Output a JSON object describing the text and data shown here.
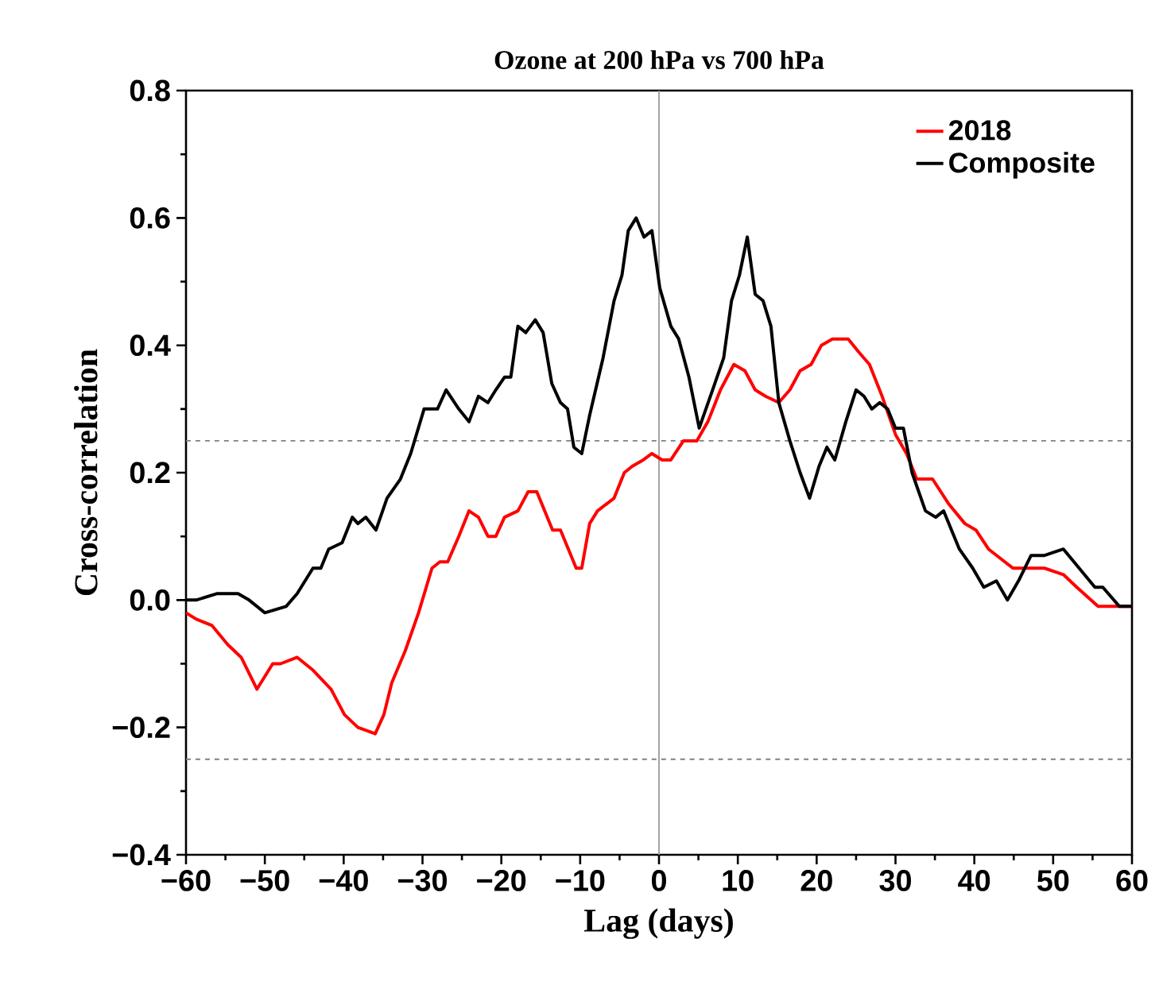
{
  "chart_data": {
    "type": "line",
    "title": "Ozone at 200 hPa vs 700 hPa",
    "xlabel": "Lag (days)",
    "ylabel": "Cross-correlation",
    "xlim": [
      -60,
      60
    ],
    "ylim": [
      -0.4,
      0.8
    ],
    "xticks": [
      {
        "value": -60,
        "label": "−60"
      },
      {
        "value": -50,
        "label": "−50"
      },
      {
        "value": -40,
        "label": "−40"
      },
      {
        "value": -30,
        "label": "−30"
      },
      {
        "value": -20,
        "label": "−20"
      },
      {
        "value": -10,
        "label": "−10"
      },
      0,
      10,
      20,
      30,
      40,
      50,
      60
    ],
    "yticks": [
      {
        "value": -0.4,
        "label": "−0.4"
      },
      {
        "value": -0.2,
        "label": "−0.2"
      },
      {
        "value": 0,
        "label": "0.0"
      },
      0.2,
      0.4,
      0.6,
      0.8
    ],
    "legend": "top right",
    "marker": "none",
    "line_style": "solid",
    "grid": false,
    "ref_lines": [
      {
        "axis": "x",
        "value": 0,
        "color": "#999999",
        "line_style": "solid"
      },
      {
        "axis": "y",
        "value": 0.25,
        "color": "#808080",
        "line_style": "dashed"
      },
      {
        "axis": "y",
        "value": -0.25,
        "color": "#808080",
        "line_style": "dashed"
      }
    ],
    "series": [
      {
        "name": "2018",
        "color": "#ff0000",
        "x": [
          -60,
          -58.7,
          -56.7,
          -54.7,
          -53,
          -51,
          -50,
          -49,
          -48,
          -45.9,
          -43.9,
          -41.6,
          -39.9,
          -38.2,
          -36,
          -34.9,
          -33.9,
          -32.2,
          -30.5,
          -28.8,
          -27.8,
          -26.8,
          -25.4,
          -24.1,
          -22.9,
          -21.7,
          -20.7,
          -19.6,
          -17.9,
          -16.6,
          -15.5,
          -13.5,
          -12.5,
          -11.5,
          -10.5,
          -9.8,
          -8.8,
          -7.8,
          -5.7,
          -4.4,
          -3.4,
          -2,
          -0.9,
          0.4,
          1.5,
          3.1,
          4.8,
          6.2,
          7.8,
          9.5,
          10.9,
          12.2,
          13.5,
          15.2,
          16.6,
          17.9,
          19.3,
          20.6,
          22,
          24,
          25.3,
          26.7,
          28.3,
          30,
          31.4,
          32.7,
          34.7,
          36.8,
          38.8,
          40.2,
          41.8,
          44.9,
          47,
          48.9,
          51.3,
          53,
          55.7,
          57.8,
          60
        ],
        "values": [
          -0.02,
          -0.03,
          -0.04,
          -0.07,
          -0.09,
          -0.14,
          -0.12,
          -0.1,
          -0.1,
          -0.09,
          -0.11,
          -0.14,
          -0.18,
          -0.2,
          -0.21,
          -0.18,
          -0.13,
          -0.08,
          -0.02,
          0.05,
          0.06,
          0.06,
          0.1,
          0.14,
          0.13,
          0.1,
          0.1,
          0.13,
          0.14,
          0.17,
          0.17,
          0.11,
          0.11,
          0.08,
          0.05,
          0.05,
          0.12,
          0.14,
          0.16,
          0.2,
          0.21,
          0.22,
          0.23,
          0.22,
          0.22,
          0.25,
          0.25,
          0.28,
          0.33,
          0.37,
          0.36,
          0.33,
          0.32,
          0.31,
          0.33,
          0.36,
          0.37,
          0.4,
          0.41,
          0.41,
          0.39,
          0.37,
          0.32,
          0.26,
          0.23,
          0.19,
          0.19,
          0.15,
          0.12,
          0.11,
          0.08,
          0.05,
          0.05,
          0.05,
          0.04,
          0.02,
          -0.01,
          -0.01,
          -0.01
        ]
      },
      {
        "name": "Composite",
        "color": "#000000",
        "x": [
          -60,
          -58.7,
          -56.1,
          -53.4,
          -52,
          -50,
          -47.3,
          -45.9,
          -43.9,
          -42.9,
          -41.9,
          -40.2,
          -38.9,
          -38.2,
          -37.2,
          -35.9,
          -34.5,
          -32.8,
          -31.5,
          -29.8,
          -28.1,
          -27,
          -25.4,
          -24.1,
          -22.9,
          -21.7,
          -20.7,
          -19.6,
          -18.8,
          -17.9,
          -16.9,
          -15.7,
          -14.7,
          -13.6,
          -12.5,
          -11.6,
          -10.8,
          -9.8,
          -8.8,
          -7.1,
          -5.7,
          -4.7,
          -3.9,
          -2.9,
          -1.9,
          -0.9,
          0.1,
          1.5,
          2.5,
          3.8,
          5.1,
          6.8,
          8.2,
          9.2,
          10.2,
          11.2,
          12.2,
          13.2,
          14.2,
          15.2,
          16.6,
          17.9,
          19.1,
          20.3,
          21.3,
          22.3,
          23.7,
          25,
          26,
          27,
          28,
          29,
          30,
          31,
          32.1,
          33.8,
          35.1,
          36.1,
          38.1,
          39.8,
          41.2,
          42.8,
          44.2,
          45.6,
          47.2,
          48.9,
          51.3,
          53.3,
          55.3,
          56.3,
          58.4,
          60
        ],
        "values": [
          0,
          0,
          0.01,
          0.01,
          0,
          -0.02,
          -0.01,
          0.01,
          0.05,
          0.05,
          0.08,
          0.09,
          0.13,
          0.12,
          0.13,
          0.11,
          0.16,
          0.19,
          0.23,
          0.3,
          0.3,
          0.33,
          0.3,
          0.28,
          0.32,
          0.31,
          0.33,
          0.35,
          0.35,
          0.43,
          0.42,
          0.44,
          0.42,
          0.34,
          0.31,
          0.3,
          0.24,
          0.23,
          0.29,
          0.38,
          0.47,
          0.51,
          0.58,
          0.6,
          0.57,
          0.58,
          0.49,
          0.43,
          0.41,
          0.35,
          0.27,
          0.33,
          0.38,
          0.47,
          0.51,
          0.57,
          0.48,
          0.47,
          0.43,
          0.31,
          0.25,
          0.2,
          0.16,
          0.21,
          0.24,
          0.22,
          0.28,
          0.33,
          0.32,
          0.3,
          0.31,
          0.3,
          0.27,
          0.27,
          0.2,
          0.14,
          0.13,
          0.14,
          0.08,
          0.05,
          0.02,
          0.03,
          0,
          0.03,
          0.07,
          0.07,
          0.08,
          0.05,
          0.02,
          0.02,
          -0.01,
          -0.01
        ]
      }
    ]
  }
}
